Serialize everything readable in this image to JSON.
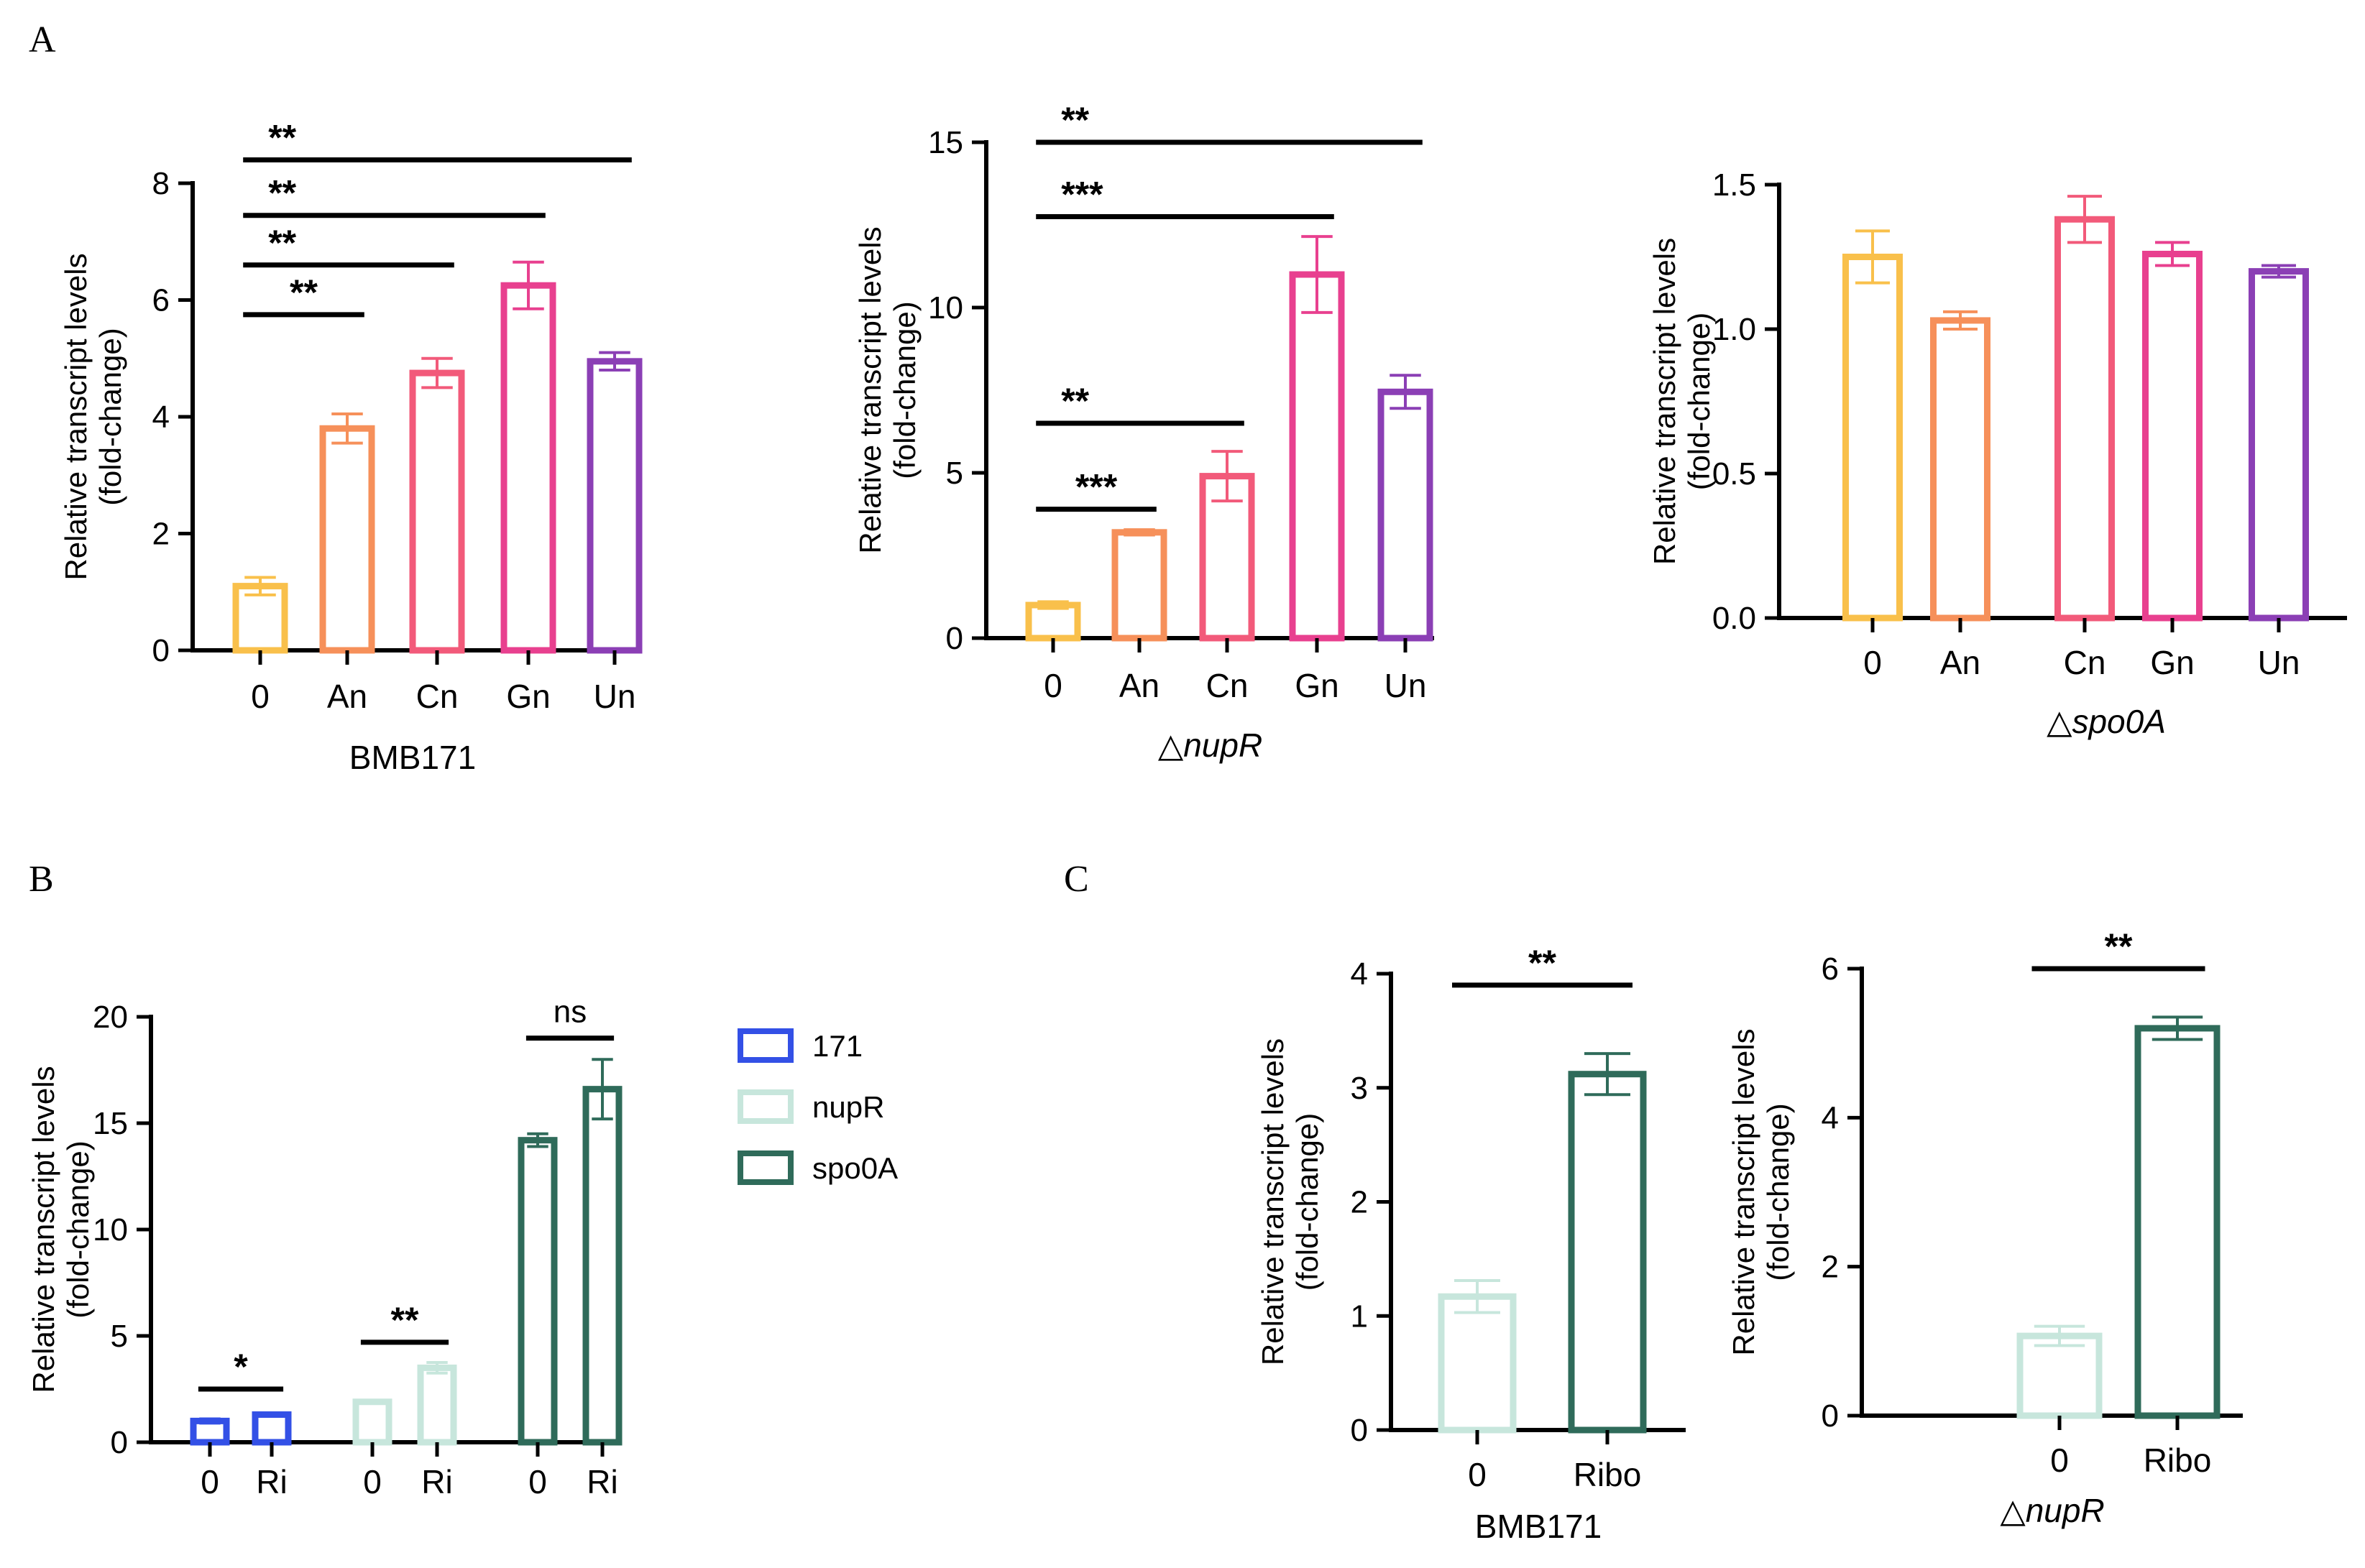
{
  "panel_letters": [
    "A",
    "B",
    "C"
  ],
  "colors": {
    "0": "#f9c04b",
    "An": "#f6905a",
    "Cn": "#f25a7a",
    "Gn": "#e8408f",
    "Un": "#8b3fb5",
    "171": "#3350e6",
    "nupR": "#c7e6dc",
    "spo0A": "#2f6b5a",
    "black": "#000000"
  },
  "chart_data": [
    {
      "id": "A1",
      "type": "bar",
      "categories": [
        "0",
        "An",
        "Cn",
        "Gn",
        "Un"
      ],
      "values": [
        1.1,
        3.8,
        4.75,
        6.25,
        4.95
      ],
      "errors": [
        0.15,
        0.25,
        0.25,
        0.4,
        0.15
      ],
      "bar_colors": [
        "#f9c04b",
        "#f6905a",
        "#f25a7a",
        "#e8408f",
        "#8b3fb5"
      ],
      "ylim": [
        0,
        8
      ],
      "yticks": [
        0,
        2,
        4,
        6,
        8
      ],
      "ytick_labels": [
        "0",
        "2",
        "4",
        "6",
        "8"
      ],
      "ylabel": [
        "Relative transcript levels",
        "(fold-change)"
      ],
      "xlabel": "BMB171",
      "xlabel_italic": false,
      "significance": [
        {
          "from": 0,
          "to": 1,
          "label": "**",
          "y": 5.75
        },
        {
          "from": 0,
          "to": 2,
          "label": "**",
          "y": 6.6
        },
        {
          "from": 0,
          "to": 3,
          "label": "**",
          "y": 7.45
        },
        {
          "from": 0,
          "to": 4,
          "label": "**",
          "y": 8.4
        }
      ]
    },
    {
      "id": "A2",
      "type": "bar",
      "categories": [
        "0",
        "An",
        "Cn",
        "Gn",
        "Un"
      ],
      "values": [
        1.0,
        3.2,
        4.9,
        11.0,
        7.45
      ],
      "errors": [
        0.1,
        0.08,
        0.75,
        1.15,
        0.5
      ],
      "bar_colors": [
        "#f9c04b",
        "#f6905a",
        "#f25a7a",
        "#e8408f",
        "#8b3fb5"
      ],
      "ylim": [
        0,
        15
      ],
      "yticks": [
        0,
        5,
        10,
        15
      ],
      "ytick_labels": [
        "0",
        "5",
        "10",
        "15"
      ],
      "ylabel": [
        "Relative transcript levels",
        "(fold-change)"
      ],
      "xlabel": "△nupR",
      "xlabel_italic": true,
      "significance": [
        {
          "from": 0,
          "to": 1,
          "label": "***",
          "y": 3.9
        },
        {
          "from": 0,
          "to": 2,
          "label": "**",
          "y": 6.5
        },
        {
          "from": 0,
          "to": 3,
          "label": "***",
          "y": 12.75
        },
        {
          "from": 0,
          "to": 4,
          "label": "**",
          "y": 15.0
        }
      ]
    },
    {
      "id": "A3",
      "type": "bar",
      "categories": [
        "0",
        "An",
        "Cn",
        "Gn",
        "Un"
      ],
      "values": [
        1.25,
        1.03,
        1.38,
        1.26,
        1.2
      ],
      "errors": [
        0.09,
        0.03,
        0.08,
        0.04,
        0.02
      ],
      "bar_colors": [
        "#f9c04b",
        "#f6905a",
        "#f25a7a",
        "#e8408f",
        "#8b3fb5"
      ],
      "ylim": [
        0,
        1.5
      ],
      "yticks": [
        0,
        0.5,
        1.0,
        1.5
      ],
      "ytick_labels": [
        "0.0",
        "0.5",
        "1.0",
        "1.5"
      ],
      "ylabel": [
        "Relative transcript levels",
        "(fold-change)"
      ],
      "xlabel": "△spo0A",
      "xlabel_italic": true,
      "significance": []
    },
    {
      "id": "B",
      "type": "bar",
      "categories": [
        "0",
        "Ri",
        "0",
        "Ri",
        "0",
        "Ri"
      ],
      "values": [
        1.0,
        1.3,
        1.9,
        3.5,
        14.2,
        16.6
      ],
      "errors": [
        0.1,
        0.05,
        0.05,
        0.25,
        0.3,
        1.4
      ],
      "bar_colors": [
        "#3350e6",
        "#3350e6",
        "#c7e6dc",
        "#c7e6dc",
        "#2f6b5a",
        "#2f6b5a"
      ],
      "groups": [
        "171",
        "nupR",
        "spo0A"
      ],
      "ylim": [
        0,
        20
      ],
      "yticks": [
        0,
        5,
        10,
        15,
        20
      ],
      "ytick_labels": [
        "0",
        "5",
        "10",
        "15",
        "20"
      ],
      "ylabel": [
        "Relative transcript levels",
        "(fold-change)"
      ],
      "xlabel": "",
      "xlabel_italic": false,
      "legend": [
        {
          "label": "171",
          "color": "#3350e6"
        },
        {
          "label": "nupR",
          "color": "#c7e6dc"
        },
        {
          "label": "spo0A",
          "color": "#2f6b5a"
        }
      ],
      "legend_position": "right",
      "significance": [
        {
          "from": 0,
          "to": 1,
          "label": "*",
          "y": 2.5
        },
        {
          "from": 2,
          "to": 3,
          "label": "**",
          "y": 4.7
        },
        {
          "from": 4,
          "to": 5,
          "label": "ns",
          "y": 19.0
        }
      ]
    },
    {
      "id": "C1",
      "type": "bar",
      "categories": [
        "0",
        "Ribo"
      ],
      "values": [
        1.17,
        3.12
      ],
      "errors": [
        0.14,
        0.18
      ],
      "bar_colors": [
        "#c7e6dc",
        "#2f6b5a"
      ],
      "ylim": [
        0,
        4
      ],
      "yticks": [
        0,
        1,
        2,
        3,
        4
      ],
      "ytick_labels": [
        "0",
        "1",
        "2",
        "3",
        "4"
      ],
      "ylabel": [
        "Relative transcript levels",
        "(fold-change)"
      ],
      "xlabel": "BMB171",
      "xlabel_italic": false,
      "significance": [
        {
          "from": 0,
          "to": 1,
          "label": "**",
          "y": 3.9
        }
      ]
    },
    {
      "id": "C2",
      "type": "bar",
      "categories": [
        "0",
        "Ribo"
      ],
      "values": [
        1.07,
        5.2
      ],
      "errors": [
        0.13,
        0.15
      ],
      "bar_colors": [
        "#c7e6dc",
        "#2f6b5a"
      ],
      "ylim": [
        0,
        6
      ],
      "yticks": [
        0,
        2,
        4,
        6
      ],
      "ytick_labels": [
        "0",
        "2",
        "4",
        "6"
      ],
      "ylabel": [
        "Relative transcript levels",
        "(fold-change)"
      ],
      "xlabel": "△nupR",
      "xlabel_italic": true,
      "significance": [
        {
          "from": 0,
          "to": 1,
          "label": "**",
          "y": 6.0
        }
      ]
    }
  ]
}
